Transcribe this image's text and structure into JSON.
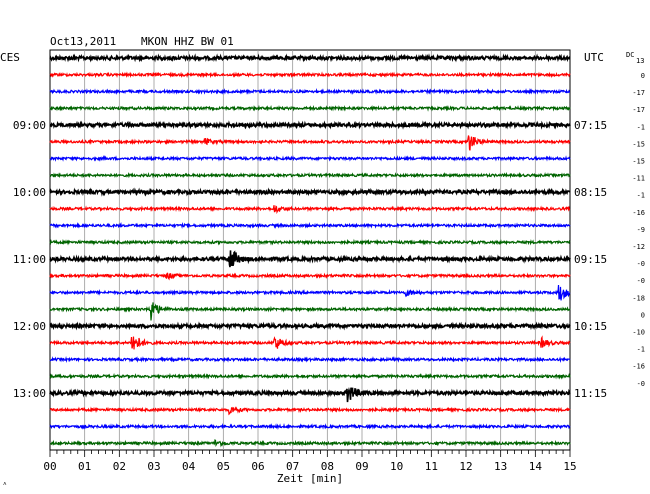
{
  "header": {
    "date": "Oct13,2011",
    "station": "MKON HHZ BW 01",
    "left_tz": "CES",
    "right_tz": "UTC",
    "dc_label": "DC",
    "dc_sub": "13"
  },
  "chart_data": {
    "type": "line",
    "title": "Oct13,2011   MKON HHZ BW 01",
    "xlabel": "Zeit [min]",
    "x_ticks": [
      "00",
      "01",
      "02",
      "03",
      "04",
      "05",
      "06",
      "07",
      "08",
      "09",
      "10",
      "11",
      "12",
      "13",
      "14",
      "15"
    ],
    "xlim": [
      0,
      15
    ],
    "trace_colors": [
      "#000000",
      "#ff0000",
      "#0000ff",
      "#006400"
    ],
    "left_hour_labels": [
      {
        "row": 4,
        "label": "09:00"
      },
      {
        "row": 8,
        "label": "10:00"
      },
      {
        "row": 12,
        "label": "11:00"
      },
      {
        "row": 16,
        "label": "12:00"
      },
      {
        "row": 20,
        "label": "13:00"
      }
    ],
    "right_hour_labels": [
      {
        "row": 4,
        "label": "07:15"
      },
      {
        "row": 8,
        "label": "08:15"
      },
      {
        "row": 12,
        "label": "09:15"
      },
      {
        "row": 16,
        "label": "10:15"
      },
      {
        "row": 20,
        "label": "11:15"
      }
    ],
    "dc_offsets": [
      "0",
      "-17",
      "-17",
      "-1",
      "-15",
      "-15",
      "-11",
      "-1",
      "-16",
      "-9",
      "-12",
      "-0",
      "-0",
      "-18",
      "0",
      "-10",
      "-1",
      "-16",
      "-0"
    ],
    "events": [
      {
        "row": 5,
        "minute": 12.1,
        "strength": 1.0
      },
      {
        "row": 5,
        "minute": 4.5,
        "strength": 0.3
      },
      {
        "row": 9,
        "minute": 6.5,
        "strength": 0.4
      },
      {
        "row": 12,
        "minute": 5.2,
        "strength": 1.3
      },
      {
        "row": 13,
        "minute": 3.4,
        "strength": 0.3
      },
      {
        "row": 14,
        "minute": 14.7,
        "strength": 1.0
      },
      {
        "row": 14,
        "minute": 10.3,
        "strength": 0.3
      },
      {
        "row": 15,
        "minute": 2.9,
        "strength": 1.3
      },
      {
        "row": 17,
        "minute": 2.4,
        "strength": 1.2
      },
      {
        "row": 17,
        "minute": 6.5,
        "strength": 0.8
      },
      {
        "row": 17,
        "minute": 14.2,
        "strength": 0.5
      },
      {
        "row": 20,
        "minute": 8.6,
        "strength": 1.0
      },
      {
        "row": 21,
        "minute": 5.2,
        "strength": 0.4
      },
      {
        "row": 23,
        "minute": 4.8,
        "strength": 0.3
      }
    ]
  }
}
